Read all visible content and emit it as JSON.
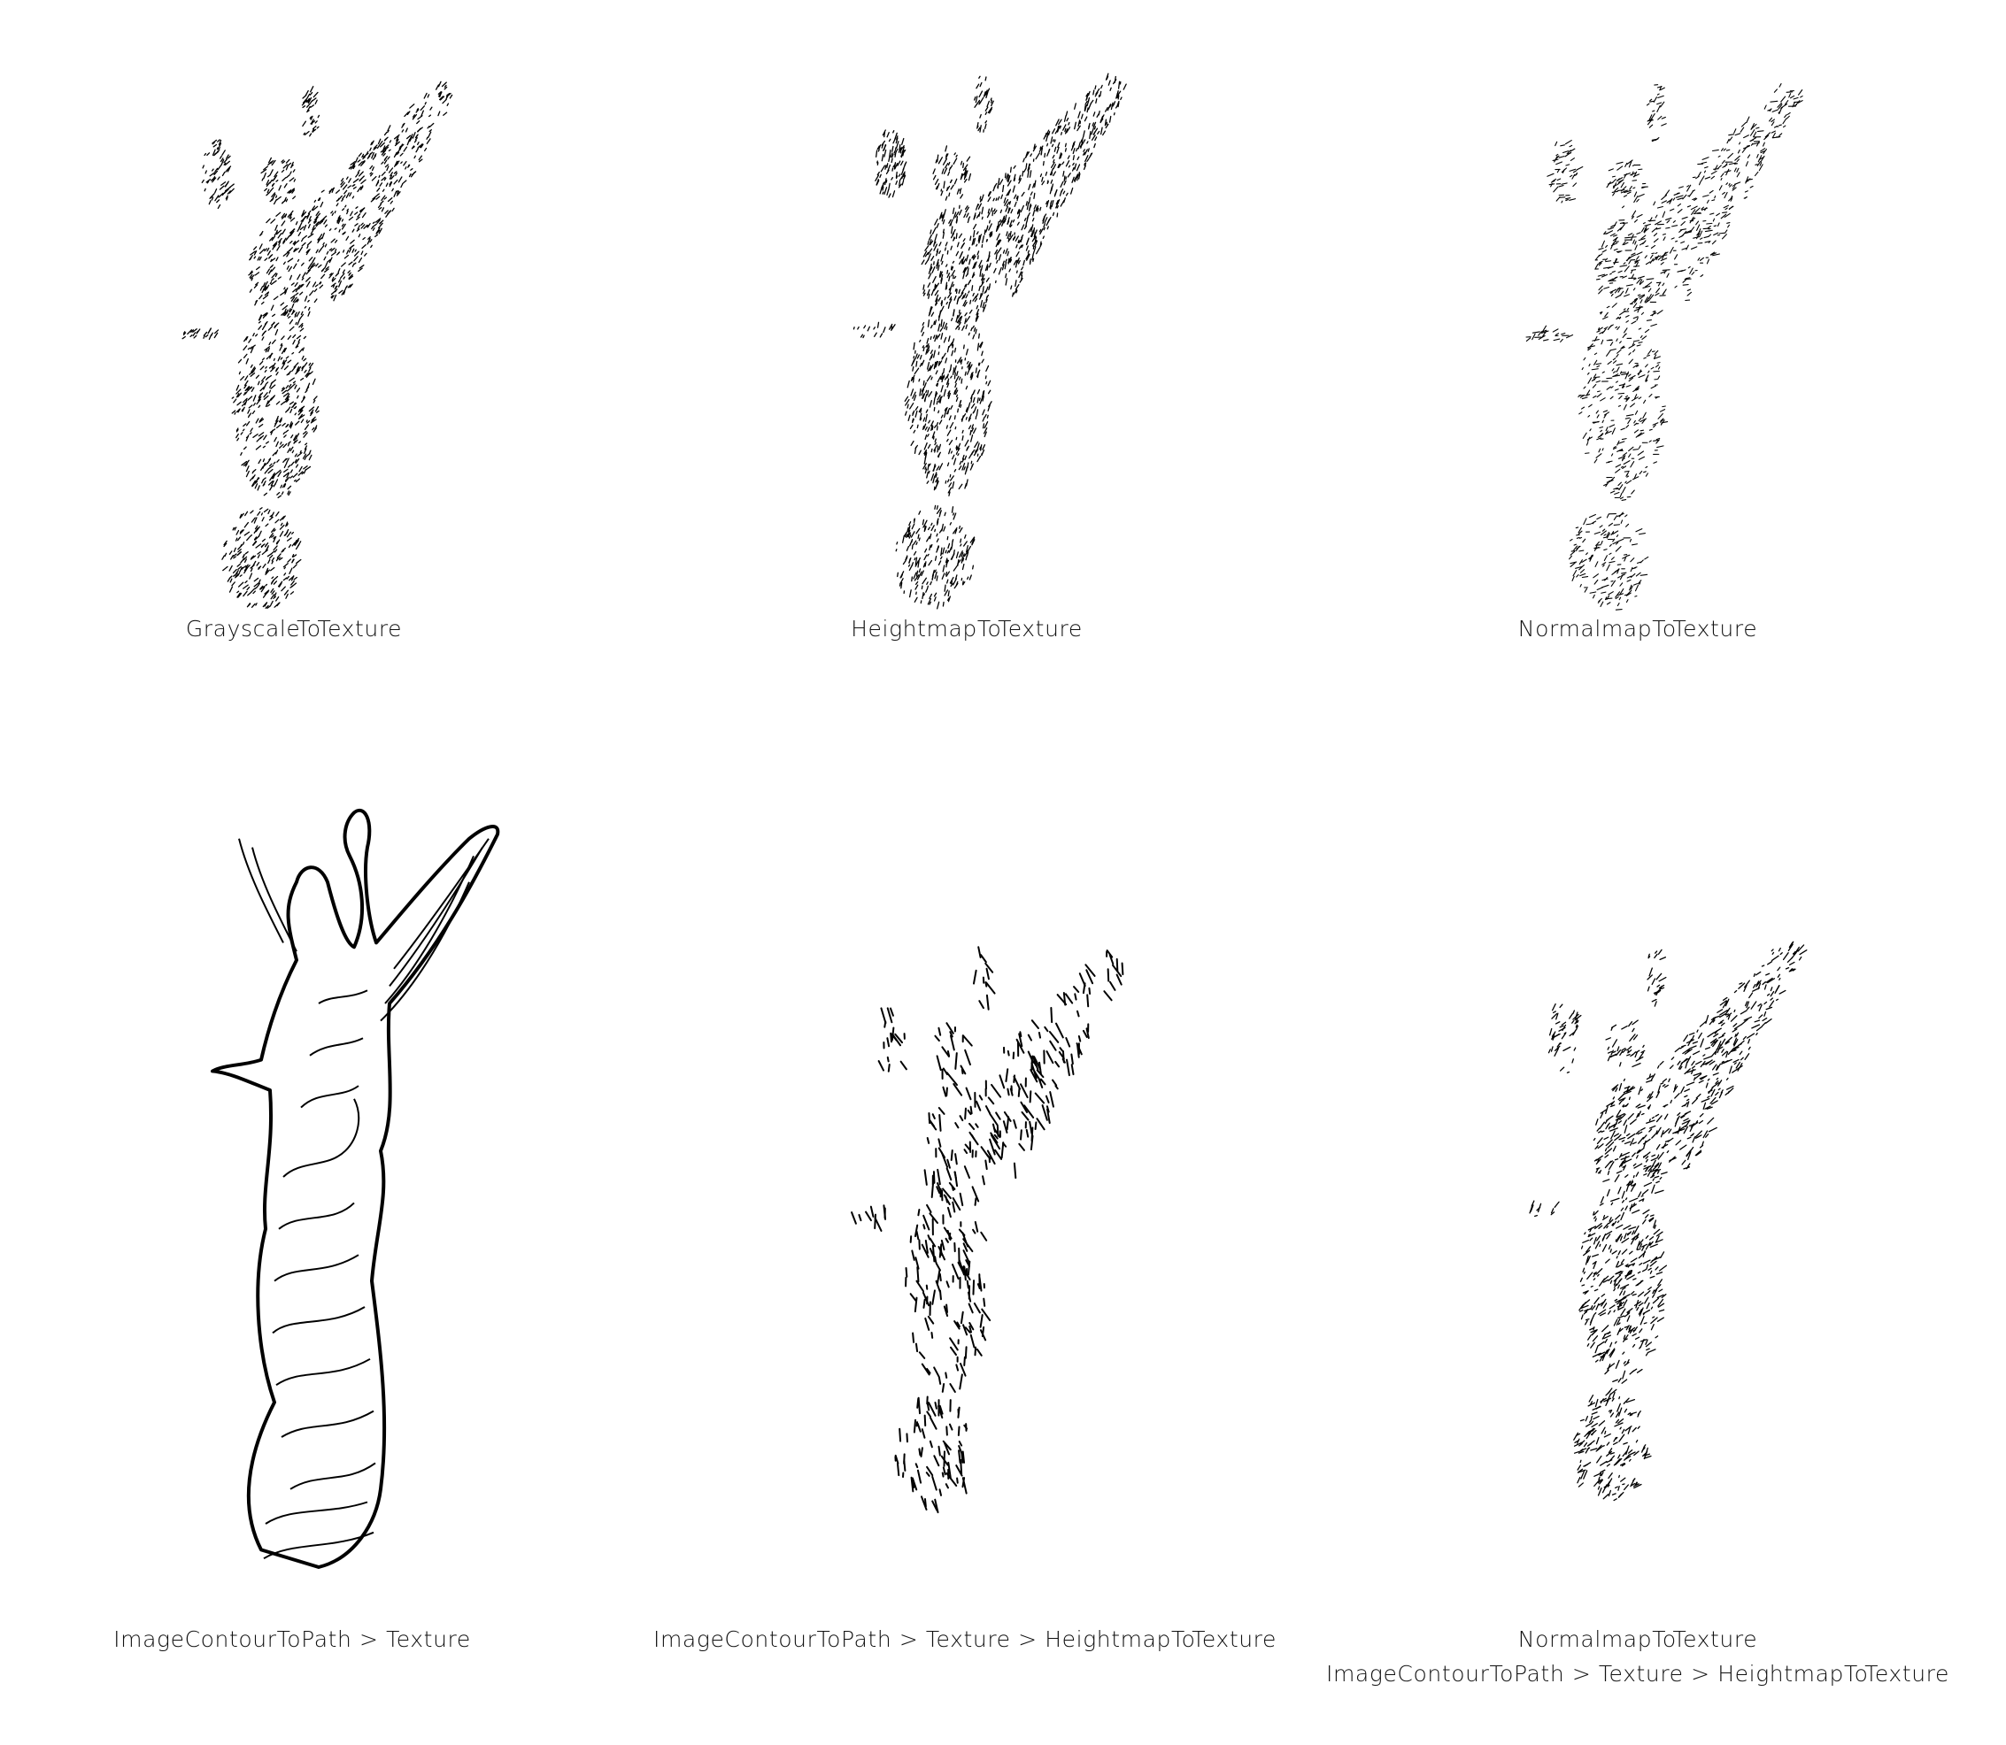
{
  "panels": [
    {
      "id": "grayscale",
      "caption_lines": [
        "GrayscaleToTexture"
      ],
      "style": "stipple-hatch"
    },
    {
      "id": "heightmap",
      "caption_lines": [
        "HeightmapToTexture"
      ],
      "style": "stipple-hatch"
    },
    {
      "id": "normalmap",
      "caption_lines": [
        "NormalmapToTexture"
      ],
      "style": "stipple-light"
    },
    {
      "id": "contour-texture",
      "caption_lines": [
        "ImageContourToPath  >  Texture"
      ],
      "style": "contour-lines"
    },
    {
      "id": "contour-texture-heightmap",
      "caption_lines": [
        "ImageContourToPath  >  Texture  >  HeightmapToTexture"
      ],
      "style": "sparse-strokes"
    },
    {
      "id": "normalmap-contour-heightmap",
      "caption_lines": [
        "NormalmapToTexture",
        "ImageContourToPath  >  Texture  >  HeightmapToTexture"
      ],
      "style": "mixed-stipple"
    }
  ],
  "colors": {
    "ink": "#000000",
    "background": "#ffffff"
  }
}
